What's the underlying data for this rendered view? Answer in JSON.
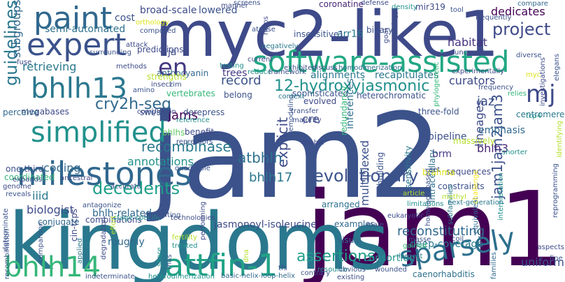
{
  "wordcloud": {
    "words": [
      {
        "text": "jam2",
        "color": "#3b528b"
      },
      {
        "text": "jam1",
        "color": "#440154"
      },
      {
        "text": "kingdoms",
        "color": "#2a788e"
      },
      {
        "text": "myc2-like1",
        "color": "#3e4a89"
      },
      {
        "text": "software-assisted",
        "color": "#22a884"
      },
      {
        "text": "milestones",
        "color": "#31688e"
      },
      {
        "text": "expert",
        "color": "#3b528b"
      },
      {
        "text": "paint",
        "color": "#31688e"
      },
      {
        "text": "simplified",
        "color": "#21918c"
      },
      {
        "text": "bhlh13",
        "color": "#2a788e"
      },
      {
        "text": "bhlh14",
        "color": "#35b779"
      },
      {
        "text": "attfin-1",
        "color": "#20a386"
      },
      {
        "text": "sparsely",
        "color": "#2d708e"
      },
      {
        "text": "en",
        "color": "#443983"
      },
      {
        "text": "mj",
        "color": "#3e4a89"
      },
      {
        "text": "evolutionary",
        "color": "#3b528b"
      },
      {
        "text": "decedents",
        "color": "#1f9e89"
      },
      {
        "text": "project",
        "color": "#3e4a89"
      },
      {
        "text": "guidelines",
        "color": "#2a788e"
      },
      {
        "text": "12-hydroxyjasmonic",
        "color": "#21918c"
      },
      {
        "text": "assertions",
        "color": "#1f9e89"
      },
      {
        "text": "cry2h-seq",
        "color": "#31688e"
      },
      {
        "text": "jam1jam2jam3",
        "color": "#3b528b"
      },
      {
        "text": "explicit",
        "color": "#3e4a89"
      },
      {
        "text": "recombinase",
        "color": "#2a788e"
      },
      {
        "text": "atbhlh",
        "color": "#2d708e"
      },
      {
        "text": "bhlh17",
        "color": "#2a788e"
      },
      {
        "text": "reconstituting",
        "color": "#31688e"
      },
      {
        "text": "record",
        "color": "#3b528b"
      },
      {
        "text": "jams",
        "color": "#440154"
      },
      {
        "text": "jaz",
        "color": "#3b528b"
      },
      {
        "text": "curators",
        "color": "#3e4a89"
      },
      {
        "text": "dedicates",
        "color": "#440154"
      },
      {
        "text": "habitat",
        "color": "#46327e"
      },
      {
        "text": "biologist",
        "color": "#3e4a89"
      },
      {
        "text": "iiid",
        "color": "#2a788e"
      },
      {
        "text": "coding",
        "color": "#31688e"
      },
      {
        "text": "annotations",
        "color": "#21918c"
      },
      {
        "text": "bhlh3",
        "color": "#482677"
      },
      {
        "text": "lineages",
        "color": "#3e4a89"
      },
      {
        "text": "multiplexed",
        "color": "#3b528b"
      },
      {
        "text": "subgroups",
        "color": "#31688e"
      },
      {
        "text": "retrieving",
        "color": "#2a788e"
      },
      {
        "text": "cre",
        "color": "#3e4a89"
      },
      {
        "text": "uniform",
        "color": "#3b528b"
      },
      {
        "text": "brm",
        "color": "#443983"
      },
      {
        "text": "emphasis",
        "color": "#31688e"
      },
      {
        "text": "broad-scale",
        "color": "#3e4a89"
      },
      {
        "text": "lowered",
        "color": "#3b528b"
      },
      {
        "text": "trees",
        "color": "#443983"
      },
      {
        "text": "jasmonoyl-isoleucine",
        "color": "#3e4a89"
      },
      {
        "text": "bhlh-related",
        "color": "#31688e"
      },
      {
        "text": "roughly",
        "color": "#31688e"
      },
      {
        "text": "arr16",
        "color": "#2a788e"
      },
      {
        "text": "consortium",
        "color": "#21918c"
      },
      {
        "text": "deep-coverage",
        "color": "#2a788e"
      },
      {
        "text": "semi-automated",
        "color": "#2d708e"
      },
      {
        "text": "cost",
        "color": "#3b528b"
      },
      {
        "text": "ja",
        "color": "#3e4a89"
      },
      {
        "text": "pipeline",
        "color": "#3b528b"
      },
      {
        "text": "inferences",
        "color": "#2d708e"
      },
      {
        "text": "alignments",
        "color": "#2a788e"
      },
      {
        "text": "recapitulates",
        "color": "#2a788e"
      },
      {
        "text": "coronatine",
        "color": "#482677"
      },
      {
        "text": "mir319",
        "color": "#3e4a89"
      },
      {
        "text": "insensitive1",
        "color": "#3b528b"
      },
      {
        "text": "binary",
        "color": "#3b528b"
      },
      {
        "text": "arranged",
        "color": "#2d708e"
      },
      {
        "text": "examples",
        "color": "#31688e"
      },
      {
        "text": "visual",
        "color": "#31688e"
      },
      {
        "text": "sequences",
        "color": "#3e4a89"
      },
      {
        "text": "constraints",
        "color": "#3b528b"
      },
      {
        "text": "intraceullary",
        "color": "#2d708e"
      },
      {
        "text": "three-fold",
        "color": "#3b528b"
      },
      {
        "text": "brahma",
        "color": "#dde318"
      },
      {
        "text": "anthocyanin",
        "color": "#31688e"
      },
      {
        "text": "belong",
        "color": "#3b528b"
      },
      {
        "text": "predictions",
        "color": "#3e4a89"
      },
      {
        "text": "derepress",
        "color": "#3b528b"
      },
      {
        "text": "benefit",
        "color": "#3e4a89"
      },
      {
        "text": "combinations",
        "color": "#3e4a89"
      },
      {
        "text": "conjugate",
        "color": "#31688e"
      },
      {
        "text": "cin-tcps",
        "color": "#3e4a89"
      },
      {
        "text": "bhlhs",
        "color": "#5ec962"
      },
      {
        "text": "strengths",
        "color": "#b5de2b"
      },
      {
        "text": "megabases",
        "color": "#3e4a89"
      },
      {
        "text": "perceive",
        "color": "#31688e"
      },
      {
        "text": "one-third",
        "color": "#3b528b"
      },
      {
        "text": "coordinated",
        "color": "#35b779"
      },
      {
        "text": "sensitivity",
        "color": "#2a788e"
      },
      {
        "text": "swi/snf",
        "color": "#3b528b"
      },
      {
        "text": "vertebrates",
        "color": "#35b779"
      },
      {
        "text": "centromere",
        "color": "#2a788e"
      },
      {
        "text": "massively",
        "color": "#b5de2b"
      },
      {
        "text": "heterochromatic",
        "color": "#3b528b"
      },
      {
        "text": "sophisticated",
        "color": "#3b528b"
      },
      {
        "text": "redundancy",
        "color": "#35b779"
      },
      {
        "text": "evolved",
        "color": "#3e4a89"
      },
      {
        "text": "building",
        "color": "#3b528b"
      },
      {
        "text": "caenorhabditis",
        "color": "#2d708e"
      },
      {
        "text": "basic-helix-loop-helix",
        "color": "#31688e"
      },
      {
        "text": "heterodimerization",
        "color": "#21918c"
      },
      {
        "text": "indeterminate",
        "color": "#3b528b"
      },
      {
        "text": "interpretation",
        "color": "#21918c"
      },
      {
        "text": "homology-based",
        "color": "#3b528b"
      },
      {
        "text": "next-generation",
        "color": "#2a788e"
      },
      {
        "text": "eukaryotic",
        "color": "#3e4a89"
      },
      {
        "text": "limitations",
        "color": "#21918c"
      },
      {
        "text": "wounded",
        "color": "#3b528b"
      },
      {
        "text": "resource",
        "color": "#21918c"
      },
      {
        "text": "obvious",
        "color": "#3b528b"
      },
      {
        "text": "largest",
        "color": "#2a788e"
      },
      {
        "text": "masse",
        "color": "#3b528b"
      },
      {
        "text": "gained",
        "color": "#35b779"
      },
      {
        "text": "equivalent",
        "color": "#31688e"
      },
      {
        "text": "subfamilies",
        "color": "#2a788e"
      },
      {
        "text": "families",
        "color": "#31688e"
      },
      {
        "text": "fine",
        "color": "#3b528b"
      },
      {
        "text": "aspects",
        "color": "#3e4a89"
      },
      {
        "text": "coil",
        "color": "#3b528b"
      },
      {
        "text": "degradation",
        "color": "#3e4a89"
      },
      {
        "text": "share",
        "color": "#21918c"
      },
      {
        "text": "applied",
        "color": "#2a788e"
      },
      {
        "text": "rnas",
        "color": "#3b528b"
      },
      {
        "text": "treated",
        "color": "#21918c"
      },
      {
        "text": "fertility",
        "color": "#b5de2b"
      },
      {
        "text": "stage-specific",
        "color": "#21918c"
      },
      {
        "text": "technologies",
        "color": "#3e4a89"
      },
      {
        "text": "antagonize",
        "color": "#3b528b"
      },
      {
        "text": "accurate",
        "color": "#3b528b"
      },
      {
        "text": "quadruple",
        "color": "#3b528b"
      },
      {
        "text": "ancestral",
        "color": "#3e4a89"
      },
      {
        "text": "repressors",
        "color": "#3b528b"
      },
      {
        "text": "reference",
        "color": "#21918c"
      },
      {
        "text": "transfer",
        "color": "#3b528b"
      },
      {
        "text": "majority",
        "color": "#3e4a89"
      },
      {
        "text": "remodeling",
        "color": "#3b528b"
      },
      {
        "text": "enable",
        "color": "#3e4a89"
      },
      {
        "text": "context",
        "color": "#2a788e"
      },
      {
        "text": "reduce",
        "color": "#21918c"
      },
      {
        "text": "framework",
        "color": "#3b528b"
      },
      {
        "text": "insect",
        "color": "#3e4a89"
      },
      {
        "text": "amino",
        "color": "#3b528b"
      },
      {
        "text": "testing",
        "color": "#21918c"
      },
      {
        "text": "current",
        "color": "#3e4a89"
      },
      {
        "text": "negatively",
        "color": "#2a788e"
      },
      {
        "text": "exhibited",
        "color": "#3b528b"
      },
      {
        "text": "discuss",
        "color": "#3e4a89"
      },
      {
        "text": "homodimerization",
        "color": "#31688e"
      },
      {
        "text": "attack",
        "color": "#3e4a89"
      },
      {
        "text": "surrounding",
        "color": "#3b528b"
      },
      {
        "text": "fuse",
        "color": "#3e4a89"
      },
      {
        "text": "methods",
        "color": "#3e4a89"
      },
      {
        "text": "zim",
        "color": "#3b528b"
      },
      {
        "text": "orthology",
        "color": "#dde318"
      },
      {
        "text": "composed",
        "color": "#3b528b"
      },
      {
        "text": "atpase",
        "color": "#3b528b"
      },
      {
        "text": "helps",
        "color": "#3e4a89"
      },
      {
        "text": "defense",
        "color": "#3e4a89"
      },
      {
        "text": "density",
        "color": "#21918c"
      },
      {
        "text": "goal",
        "color": "#3e4a89"
      },
      {
        "text": "ontology",
        "color": "#3e4a89"
      },
      {
        "text": "tool",
        "color": "#3b528b"
      },
      {
        "text": "compare",
        "color": "#31688e"
      },
      {
        "text": "frequently",
        "color": "#3b528b"
      },
      {
        "text": "uncovering",
        "color": "#3e4a89"
      },
      {
        "text": "diverse",
        "color": "#3b528b"
      },
      {
        "text": "elegans",
        "color": "#3b528b"
      },
      {
        "text": "experimentally",
        "color": "#3e4a89"
      },
      {
        "text": "myc",
        "color": "#dde318"
      },
      {
        "text": "phylogenetic",
        "color": "#35b779"
      },
      {
        "text": "frequency",
        "color": "#3b528b"
      },
      {
        "text": "relies",
        "color": "#35b779"
      },
      {
        "text": "investigations",
        "color": "#3e4a89"
      },
      {
        "text": "tcp4",
        "color": "#21918c"
      },
      {
        "text": "shorter",
        "color": "#21918c"
      },
      {
        "text": "identifying",
        "color": "#b5de2b"
      },
      {
        "text": "reprogramming",
        "color": "#3b528b"
      },
      {
        "text": "set",
        "color": "#3b528b"
      },
      {
        "text": "challenge",
        "color": "#fde725"
      },
      {
        "text": "article",
        "color": "#b5de2b"
      },
      {
        "text": "contrary",
        "color": "#3b528b"
      },
      {
        "text": "existing",
        "color": "#3e4a89"
      },
      {
        "text": "male",
        "color": "#3b528b"
      },
      {
        "text": "dna",
        "color": "#b5de2b"
      },
      {
        "text": "methyl",
        "color": "#b5de2b"
      },
      {
        "text": "tfs",
        "color": "#3b528b"
      },
      {
        "text": "effort",
        "color": "#b5de2b"
      },
      {
        "text": "comparison",
        "color": "#3b528b"
      },
      {
        "text": "performing",
        "color": "#3e4a89"
      },
      {
        "text": "depositing",
        "color": "#3b528b"
      },
      {
        "text": "determinate",
        "color": "#3b528b"
      },
      {
        "text": "recombination",
        "color": "#3b528b"
      },
      {
        "text": "genome",
        "color": "#3e4a89"
      },
      {
        "text": "reveals",
        "color": "#3b528b"
      },
      {
        "text": "expands",
        "color": "#3e4a89"
      },
      {
        "text": "completion",
        "color": "#3e4a89"
      },
      {
        "text": "screens",
        "color": "#3b528b"
      },
      {
        "text": "manner",
        "color": "#3e4a89"
      }
    ]
  }
}
